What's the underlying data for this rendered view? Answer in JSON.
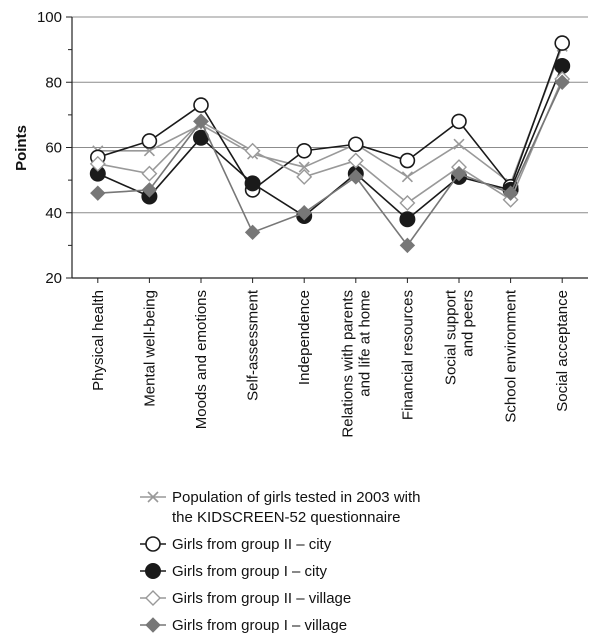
{
  "chart_data": {
    "type": "line",
    "title": "",
    "xlabel": "",
    "ylabel": "Points",
    "ylim": [
      20,
      100
    ],
    "yticks": [
      20,
      40,
      60,
      80,
      100
    ],
    "grid": true,
    "legend_position": "bottom",
    "categories": [
      "Physical health",
      "Mental well-being",
      "Moods and emotions",
      "Self-assessment",
      "Independence",
      "Relations with parents and life at home",
      "Financial resources",
      "Social support and peers",
      "School environment",
      "Social acceptance"
    ],
    "category_lines": [
      [
        "Physical health"
      ],
      [
        "Mental well-being"
      ],
      [
        "Moods and emotions"
      ],
      [
        "Self-assessment"
      ],
      [
        "Independence"
      ],
      [
        "Relations with parents",
        "and life at home"
      ],
      [
        "Financial resources"
      ],
      [
        "Social support",
        "and peers"
      ],
      [
        "School environment"
      ],
      [
        "Social acceptance"
      ]
    ],
    "series": [
      {
        "name": "Population of girls tested in 2003 with the KIDSCREEN-52 questionnaire",
        "name_lines": [
          "Population of girls tested in 2003 with",
          "the KIDSCREEN-52 questionnaire"
        ],
        "marker": "cross",
        "color": "#999999",
        "values": [
          59,
          59,
          67,
          58,
          54,
          61,
          51,
          61,
          49,
          91
        ]
      },
      {
        "name": "Girls from group II – city",
        "name_lines": [
          "Girls from group II – city"
        ],
        "marker": "open-circle",
        "color": "#1a1a1a",
        "values": [
          57,
          62,
          73,
          47,
          59,
          61,
          56,
          68,
          48,
          92
        ]
      },
      {
        "name": "Girls from group I – city",
        "name_lines": [
          "Girls from group I – city"
        ],
        "marker": "filled-circle",
        "color": "#1a1a1a",
        "values": [
          52,
          45,
          63,
          49,
          39,
          52,
          38,
          51,
          47,
          85
        ]
      },
      {
        "name": "Girls from group II – village",
        "name_lines": [
          "Girls from group II – village"
        ],
        "marker": "open-diamond",
        "color": "#999999",
        "values": [
          55,
          52,
          68,
          59,
          51,
          56,
          43,
          54,
          44,
          81
        ]
      },
      {
        "name": "Girls from group I – village",
        "name_lines": [
          "Girls from group I – village"
        ],
        "marker": "filled-diamond",
        "color": "#777777",
        "values": [
          46,
          47,
          68,
          34,
          40,
          51,
          30,
          52,
          46,
          80
        ]
      }
    ]
  }
}
